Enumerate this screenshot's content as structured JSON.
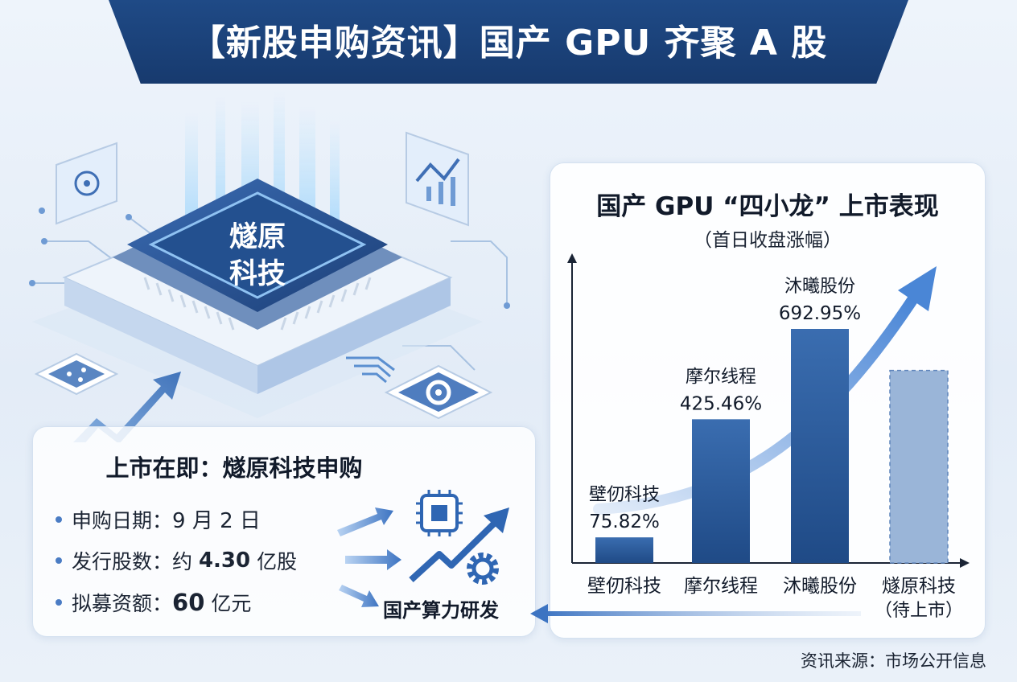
{
  "header": {
    "title": "【新股申购资讯】国产 GPU 齐聚 A 股"
  },
  "illustration": {
    "chip_label_line1": "燧原",
    "chip_label_line2": "科技"
  },
  "ipo": {
    "title": "上市在即：燧原科技申购",
    "rows": [
      {
        "label": "申购日期：",
        "value": "9 月 2 日",
        "emphasis": "normal"
      },
      {
        "label": "发行股数：",
        "value_prefix": "约 ",
        "value": "4.30",
        "value_suffix": " 亿股",
        "emphasis": "bold"
      },
      {
        "label": "拟募资额：",
        "value": "60",
        "value_suffix": " 亿元",
        "emphasis": "big"
      }
    ],
    "target_label": "国产算力研发"
  },
  "chart_data": {
    "type": "bar",
    "title": "国产 GPU “四小龙” 上市表现",
    "subtitle": "（首日收盘涨幅）",
    "categories": [
      "壁仞科技",
      "摩尔线程",
      "沐曦股份",
      "燧原科技"
    ],
    "category_note": [
      "",
      "",
      "",
      "（待上市）"
    ],
    "values": [
      75.82,
      425.46,
      692.95,
      null
    ],
    "value_labels": [
      "75.82%",
      "425.46%",
      "692.95%",
      ""
    ],
    "bar_name_labels": [
      "壁仞科技",
      "摩尔线程",
      "沐曦股份",
      ""
    ],
    "pending_bar_value": 570,
    "ylim": [
      0,
      692.95
    ],
    "grid": false,
    "colors": {
      "bar_top": "#3a6db0",
      "bar_bottom": "#1f4a86",
      "pending": "#9ab5d8",
      "pending_border": "#5f85bb",
      "trend": "#4a86d6"
    }
  },
  "footer": {
    "source": "资讯来源：市场公开信息"
  }
}
